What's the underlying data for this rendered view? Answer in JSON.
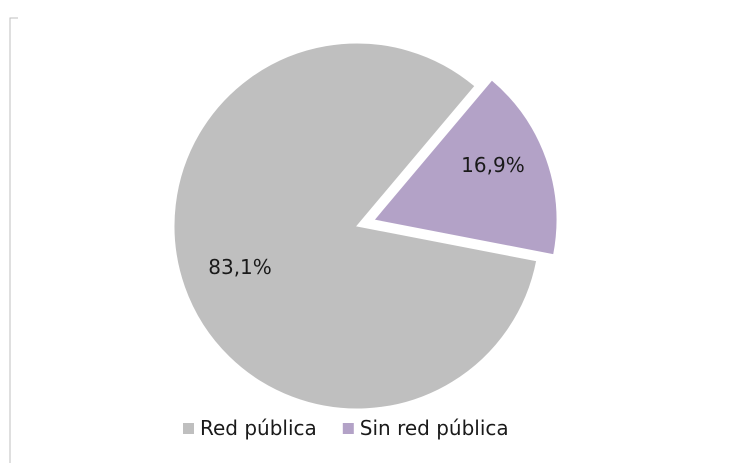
{
  "chart_data": {
    "type": "pie",
    "title": "",
    "slices": [
      {
        "name": "Red pública",
        "value": 83.1,
        "label": "83,1%",
        "color": "#bfbfbf",
        "exploded": false
      },
      {
        "name": "Sin red pública",
        "value": 16.9,
        "label": "16,9%",
        "color": "#b3a2c7",
        "exploded": true
      }
    ],
    "legend": {
      "position": "bottom"
    }
  }
}
